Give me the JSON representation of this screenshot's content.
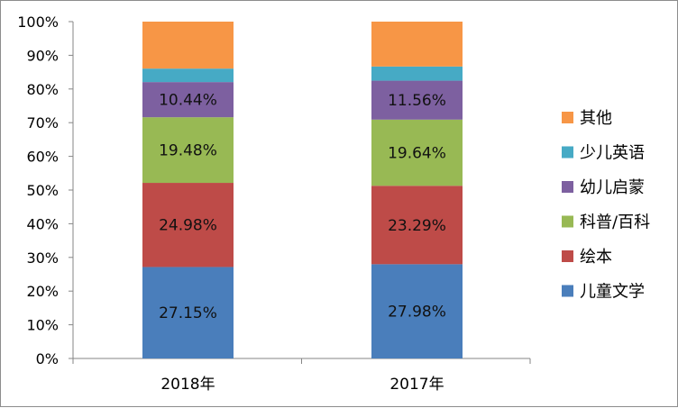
{
  "chart_data": {
    "type": "bar",
    "stacked": true,
    "percent_stacked": true,
    "categories": [
      "2018年",
      "2017年"
    ],
    "series": [
      {
        "name": "儿童文学",
        "color": "#4a7ebb",
        "values": [
          27.15,
          27.98
        ],
        "labels": [
          "27.15%",
          "27.98%"
        ]
      },
      {
        "name": "绘本",
        "color": "#be4b48",
        "values": [
          24.98,
          23.29
        ],
        "labels": [
          "24.98%",
          "23.29%"
        ]
      },
      {
        "name": "科普/百科",
        "color": "#98b954",
        "values": [
          19.48,
          19.64
        ],
        "labels": [
          "19.48%",
          "19.64%"
        ]
      },
      {
        "name": "幼儿启蒙",
        "color": "#7d60a0",
        "values": [
          10.44,
          11.56
        ],
        "labels": [
          "10.44%",
          "11.56%"
        ]
      },
      {
        "name": "少儿英语",
        "color": "#46aac5",
        "values": [
          4.0,
          4.2
        ],
        "labels": [
          "",
          ""
        ]
      },
      {
        "name": "其他",
        "color": "#f79646",
        "values": [
          13.95,
          13.33
        ],
        "labels": [
          "",
          ""
        ]
      }
    ],
    "ylim": [
      0,
      100
    ],
    "yticks": [
      "0%",
      "10%",
      "20%",
      "30%",
      "40%",
      "50%",
      "60%",
      "70%",
      "80%",
      "90%",
      "100%"
    ],
    "grid": false,
    "legend_position": "right",
    "legend_order": [
      "其他",
      "少儿英语",
      "幼儿启蒙",
      "科普/百科",
      "绘本",
      "儿童文学"
    ]
  }
}
